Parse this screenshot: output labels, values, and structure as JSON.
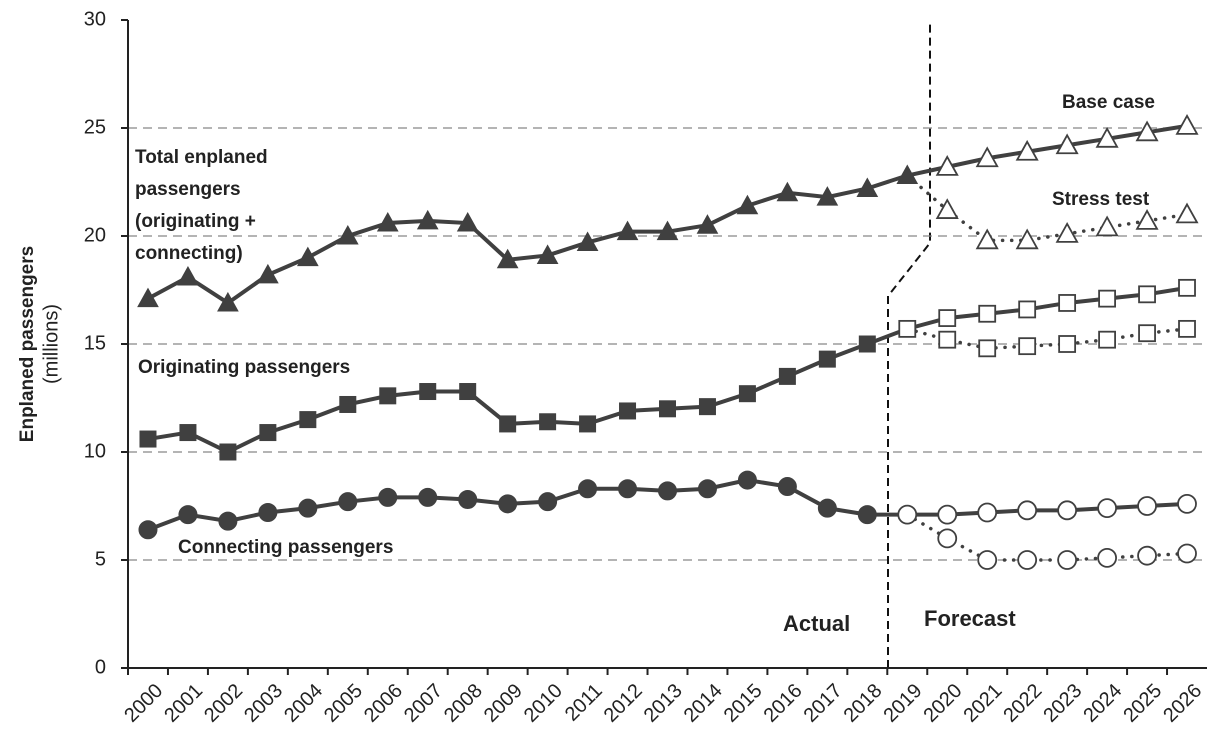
{
  "chart_data": {
    "type": "line",
    "y_axis_label": "Enplaned passengers",
    "y_axis_unit": "(millions)",
    "categories": [
      "2000",
      "2001",
      "2002",
      "2003",
      "2004",
      "2005",
      "2006",
      "2007",
      "2008",
      "2009",
      "2010",
      "2011",
      "2012",
      "2013",
      "2014",
      "2015",
      "2016",
      "2017",
      "2018",
      "2019",
      "2020",
      "2021",
      "2022",
      "2023",
      "2024",
      "2025",
      "2026"
    ],
    "ylim": [
      0,
      30
    ],
    "yticks": [
      0,
      5,
      10,
      15,
      20,
      25,
      30
    ],
    "grid": true,
    "series": [
      {
        "color": "#404040",
        "marker": "triangle",
        "filled": true,
        "dotted": false,
        "values": [
          17.1,
          18.1,
          16.9,
          18.2,
          19.0,
          20.0,
          20.6,
          20.7,
          20.6,
          18.9,
          19.1,
          19.7,
          20.2,
          20.2,
          20.5,
          21.4,
          22.0,
          21.8,
          22.2,
          22.8,
          null,
          null,
          null,
          null,
          null,
          null,
          null
        ]
      },
      {
        "color": "#404040",
        "marker": "triangle",
        "filled": false,
        "dotted": false,
        "values": [
          null,
          null,
          null,
          null,
          null,
          null,
          null,
          null,
          null,
          null,
          null,
          null,
          null,
          null,
          null,
          null,
          null,
          null,
          null,
          null,
          23.2,
          23.6,
          23.9,
          24.2,
          24.5,
          24.8,
          25.1
        ]
      },
      {
        "color": "#404040",
        "marker": "triangle",
        "filled": false,
        "dotted": true,
        "values": [
          null,
          null,
          null,
          null,
          null,
          null,
          null,
          null,
          null,
          null,
          null,
          null,
          null,
          null,
          null,
          null,
          null,
          null,
          null,
          null,
          21.2,
          19.8,
          19.8,
          20.1,
          20.4,
          20.7,
          21.0
        ]
      },
      {
        "color": "#404040",
        "marker": "square",
        "filled": true,
        "dotted": false,
        "values": [
          10.6,
          10.9,
          10.0,
          10.9,
          11.5,
          12.2,
          12.6,
          12.8,
          12.8,
          11.3,
          11.4,
          11.3,
          11.9,
          12.0,
          12.1,
          12.7,
          13.5,
          14.3,
          15.0,
          null,
          null,
          null,
          null,
          null,
          null,
          null,
          null
        ]
      },
      {
        "color": "#404040",
        "marker": "square",
        "filled": false,
        "dotted": false,
        "values": [
          null,
          null,
          null,
          null,
          null,
          null,
          null,
          null,
          null,
          null,
          null,
          null,
          null,
          null,
          null,
          null,
          null,
          null,
          null,
          15.7,
          16.2,
          16.4,
          16.6,
          16.9,
          17.1,
          17.3,
          17.6
        ]
      },
      {
        "color": "#404040",
        "marker": "square",
        "filled": false,
        "dotted": true,
        "values": [
          null,
          null,
          null,
          null,
          null,
          null,
          null,
          null,
          null,
          null,
          null,
          null,
          null,
          null,
          null,
          null,
          null,
          null,
          null,
          null,
          15.2,
          14.8,
          14.9,
          15.0,
          15.2,
          15.5,
          15.7
        ]
      },
      {
        "color": "#404040",
        "marker": "circle",
        "filled": true,
        "dotted": false,
        "values": [
          6.4,
          7.1,
          6.8,
          7.2,
          7.4,
          7.7,
          7.9,
          7.9,
          7.8,
          7.6,
          7.7,
          8.3,
          8.3,
          8.2,
          8.3,
          8.7,
          8.4,
          7.4,
          7.1,
          null,
          null,
          null,
          null,
          null,
          null,
          null,
          null
        ]
      },
      {
        "color": "#404040",
        "marker": "circle",
        "filled": false,
        "dotted": false,
        "values": [
          null,
          null,
          null,
          null,
          null,
          null,
          null,
          null,
          null,
          null,
          null,
          null,
          null,
          null,
          null,
          null,
          null,
          null,
          null,
          7.1,
          7.1,
          7.2,
          7.3,
          7.3,
          7.4,
          7.5,
          7.6
        ]
      },
      {
        "color": "#404040",
        "marker": "circle",
        "filled": false,
        "dotted": true,
        "values": [
          null,
          null,
          null,
          null,
          null,
          null,
          null,
          null,
          null,
          null,
          null,
          null,
          null,
          null,
          null,
          null,
          null,
          null,
          null,
          null,
          6.0,
          5.0,
          5.0,
          5.0,
          5.1,
          5.2,
          5.3
        ]
      }
    ],
    "annotations": [
      "Total enplaned",
      "passengers",
      "(originating +",
      "connecting)",
      "Originating passengers",
      "Connecting passengers",
      "Base case",
      "Stress test",
      "Actual",
      "Forecast"
    ]
  }
}
